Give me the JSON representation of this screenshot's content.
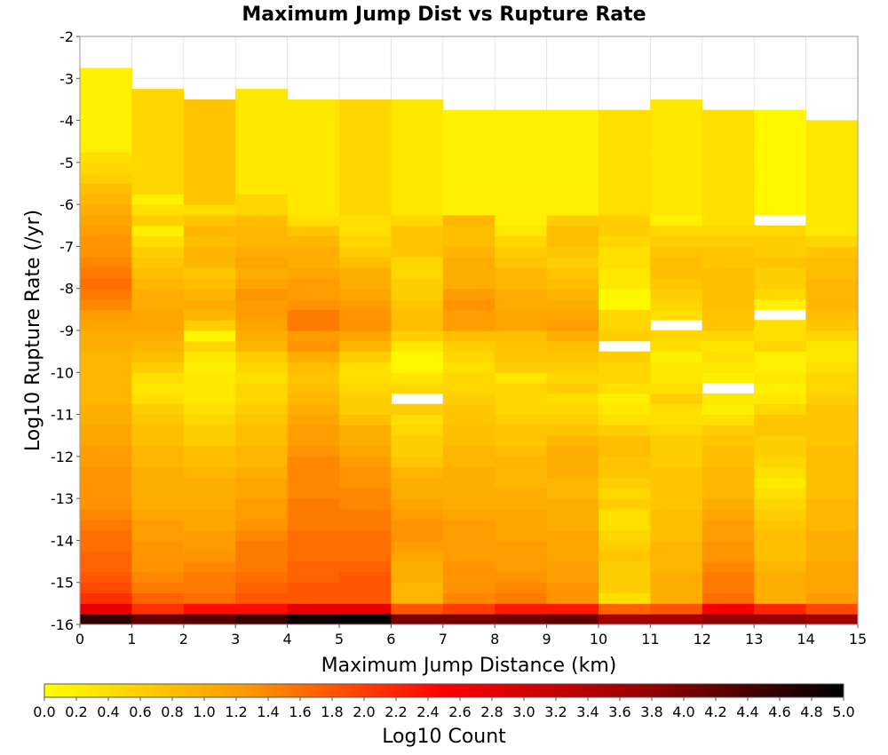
{
  "chart_data": {
    "type": "heatmap",
    "title": "Maximum Jump Dist vs Rupture Rate",
    "xlabel": "Maximum Jump Distance (km)",
    "ylabel": "Log10 Rupture Rate (/yr)",
    "xlim": [
      0,
      15
    ],
    "ylim": [
      -16,
      -2
    ],
    "x_ticks": [
      "0",
      "1",
      "2",
      "3",
      "4",
      "5",
      "6",
      "7",
      "8",
      "9",
      "10",
      "11",
      "12",
      "13",
      "14",
      "15"
    ],
    "y_ticks": [
      "-2",
      "-3",
      "-4",
      "-5",
      "-6",
      "-7",
      "-8",
      "-9",
      "-10",
      "-11",
      "-12",
      "-13",
      "-14",
      "-15",
      "-16"
    ],
    "x_bin_width_km": 1,
    "y_bin_height_log10": 0.25,
    "y_bin_start": -16,
    "colorbar": {
      "label": "Log10 Count",
      "range": [
        0,
        5
      ],
      "ticks": [
        "0.0",
        "0.2",
        "0.4",
        "0.6",
        "0.8",
        "1.0",
        "1.2",
        "1.4",
        "1.6",
        "1.8",
        "2.0",
        "2.2",
        "2.4",
        "2.6",
        "2.8",
        "3.0",
        "3.2",
        "3.4",
        "3.6",
        "3.8",
        "4.0",
        "4.2",
        "4.4",
        "4.6",
        "4.8",
        "5.0"
      ],
      "colors": [
        "#ffff00",
        "#ff9900",
        "#ff0000",
        "#990000",
        "#000000"
      ]
    },
    "grid": true,
    "column_top_log10_rate": [
      -2.75,
      -3.25,
      -3.5,
      -3.25,
      -3.5,
      -3.5,
      -3.5,
      -3.75,
      -3.75,
      -3.75,
      -3.75,
      -3.5,
      -3.75,
      -3.75,
      -4.0
    ],
    "bottom_row_values": [
      4.6,
      4.2,
      4.3,
      4.5,
      4.9,
      5.0,
      4.0,
      4.0,
      4.1,
      4.2,
      3.6,
      3.6,
      3.8,
      3.8,
      3.6
    ],
    "second_row_values": [
      2.8,
      2.1,
      2.4,
      2.4,
      2.8,
      2.8,
      1.8,
      2.0,
      2.3,
      2.3,
      1.7,
      1.8,
      2.6,
      2.2,
      1.9
    ],
    "surface_values_by_column": [
      [
        2.1,
        1.9,
        1.8,
        1.7,
        1.7,
        1.6,
        1.6,
        1.5,
        1.4,
        1.3,
        1.3,
        1.3,
        1.3,
        1.2,
        1.2,
        1.1,
        1.1,
        1.0,
        1.0,
        0.9,
        0.9,
        0.9,
        0.9,
        0.9,
        1.0,
        1.0,
        1.1,
        1.2,
        1.4,
        1.5,
        1.6,
        1.5,
        1.4,
        1.3,
        1.3,
        1.2,
        1.1,
        1.0,
        0.9,
        0.8,
        0.6,
        0.5,
        0.4,
        0.2
      ],
      [
        1.7,
        1.5,
        1.4,
        1.3,
        1.3,
        1.3,
        1.2,
        1.2,
        1.1,
        1.0,
        1.0,
        1.0,
        1.0,
        0.9,
        0.9,
        0.8,
        0.8,
        0.7,
        0.6,
        0.4,
        0.3,
        0.4,
        0.6,
        0.8,
        0.9,
        1.0,
        1.1,
        1.1,
        1.0,
        1.0,
        0.9,
        0.8,
        0.7,
        0.6,
        0.4,
        0.2,
        0.6,
        0.4,
        0.2,
        0.5
      ],
      [
        1.6,
        1.5,
        1.5,
        1.4,
        1.3,
        1.2,
        1.2,
        1.1,
        1.1,
        1.0,
        1.0,
        1.0,
        0.9,
        0.8,
        0.8,
        0.6,
        0.6,
        0.5,
        0.4,
        0.3,
        0.3,
        0.3,
        0.2,
        0.3,
        0.5,
        0.1,
        0.6,
        0.9,
        1.0,
        0.9,
        0.8,
        0.7,
        0.9,
        0.9,
        0.8,
        0.9,
        0.7,
        0.4,
        0.7
      ],
      [
        1.8,
        1.7,
        1.6,
        1.5,
        1.5,
        1.5,
        1.4,
        1.3,
        1.2,
        1.2,
        1.1,
        1.1,
        1.0,
        0.9,
        0.9,
        0.8,
        0.8,
        0.7,
        0.6,
        0.5,
        0.5,
        0.4,
        0.5,
        0.6,
        0.9,
        1.0,
        1.1,
        1.2,
        1.2,
        1.3,
        1.1,
        1.0,
        1.1,
        1.0,
        0.9,
        0.9,
        0.8,
        0.5,
        0.5,
        0.3
      ],
      [
        1.8,
        1.8,
        1.7,
        1.7,
        1.6,
        1.6,
        1.6,
        1.5,
        1.5,
        1.5,
        1.4,
        1.4,
        1.4,
        1.4,
        1.3,
        1.2,
        1.2,
        1.1,
        1.0,
        0.9,
        0.8,
        0.7,
        0.8,
        1.0,
        1.3,
        1.2,
        1.5,
        1.5,
        1.3,
        1.2,
        1.2,
        1.1,
        1.0,
        1.0,
        0.9,
        0.7,
        0.4,
        0.3
      ],
      [
        1.8,
        1.8,
        1.8,
        1.7,
        1.6,
        1.6,
        1.6,
        1.5,
        1.5,
        1.4,
        1.4,
        1.3,
        1.3,
        1.2,
        1.1,
        1.0,
        1.0,
        0.8,
        0.6,
        0.6,
        0.5,
        0.4,
        0.4,
        0.6,
        0.9,
        1.1,
        1.3,
        1.3,
        1.2,
        1.1,
        1.0,
        1.0,
        0.8,
        0.6,
        0.5,
        0.4,
        0.4,
        0.5
      ],
      [
        0.9,
        0.9,
        1.0,
        1.0,
        1.1,
        1.2,
        1.3,
        1.3,
        1.2,
        1.1,
        1.0,
        1.0,
        0.9,
        0.7,
        0.6,
        0.6,
        0.5,
        0.4,
        0.6,
        -1,
        0.5,
        0.3,
        0.1,
        0.1,
        0.3,
        0.6,
        0.8,
        0.8,
        0.7,
        0.6,
        0.6,
        0.5,
        0.5,
        0.7,
        0.7,
        0.7,
        0.5,
        0.3
      ],
      [
        1.4,
        1.3,
        1.3,
        1.3,
        1.2,
        1.2,
        1.2,
        1.2,
        1.1,
        1.0,
        1.0,
        1.0,
        1.0,
        0.9,
        0.9,
        0.8,
        0.8,
        0.7,
        0.7,
        0.6,
        0.5,
        0.5,
        0.4,
        0.5,
        0.6,
        0.8,
        1.2,
        1.2,
        1.3,
        1.2,
        1.0,
        1.0,
        1.0,
        0.9,
        0.8,
        0.8,
        0.9,
        0.2
      ],
      [
        1.5,
        1.4,
        1.3,
        1.2,
        1.2,
        1.2,
        1.1,
        1.1,
        1.1,
        1.0,
        1.0,
        0.9,
        0.9,
        0.9,
        0.8,
        0.7,
        0.7,
        0.6,
        0.5,
        0.5,
        0.5,
        0.3,
        0.6,
        0.7,
        0.7,
        0.8,
        1.1,
        1.1,
        1.0,
        1.0,
        0.9,
        0.9,
        0.7,
        0.6,
        0.5,
        0.3,
        0.2
      ],
      [
        1.3,
        1.3,
        1.2,
        1.2,
        1.1,
        1.1,
        1.1,
        1.0,
        1.0,
        1.0,
        0.9,
        0.9,
        1.0,
        1.0,
        1.0,
        0.9,
        0.7,
        0.6,
        0.5,
        0.4,
        0.6,
        0.5,
        0.6,
        0.7,
        0.8,
        1.0,
        1.2,
        1.1,
        1.0,
        0.9,
        0.8,
        0.7,
        0.6,
        0.7,
        0.8,
        0.8,
        0.6,
        0.2
      ],
      [
        0.4,
        0.6,
        0.6,
        0.6,
        0.7,
        0.6,
        0.5,
        0.4,
        0.4,
        0.6,
        0.5,
        0.6,
        0.7,
        0.7,
        0.8,
        0.8,
        0.6,
        0.4,
        0.3,
        0.2,
        0.4,
        0.5,
        0.5,
        0.6,
        -1,
        0.6,
        0.5,
        0.5,
        0.1,
        0.1,
        0.3,
        0.3,
        0.4,
        0.4,
        0.5,
        0.6,
        0.6,
        0.4
      ],
      [
        1.0,
        1.0,
        1.0,
        0.9,
        0.9,
        0.9,
        0.8,
        0.8,
        0.8,
        0.7,
        0.7,
        0.7,
        0.7,
        0.6,
        0.6,
        0.6,
        0.5,
        0.4,
        0.4,
        0.6,
        0.4,
        0.3,
        0.3,
        0.2,
        0.4,
        0.5,
        -1,
        0.4,
        0.5,
        0.6,
        0.7,
        0.8,
        0.8,
        0.7,
        0.6,
        0.5,
        0.2,
        0.3
      ],
      [
        1.6,
        1.5,
        1.5,
        1.4,
        1.3,
        1.3,
        1.2,
        1.2,
        1.1,
        1.0,
        0.9,
        0.9,
        0.9,
        0.8,
        0.8,
        0.7,
        0.6,
        0.4,
        0.2,
        0.3,
        -1,
        0.2,
        0.3,
        0.4,
        0.3,
        0.5,
        0.7,
        0.7,
        0.8,
        0.8,
        0.8,
        0.8,
        0.7,
        0.7,
        0.6,
        0.5,
        0.4
      ],
      [
        1.0,
        1.0,
        1.0,
        0.9,
        0.8,
        0.8,
        0.8,
        0.7,
        0.6,
        0.5,
        0.4,
        0.3,
        0.4,
        0.5,
        0.6,
        0.6,
        0.7,
        0.7,
        0.5,
        0.3,
        0.2,
        0.3,
        0.2,
        0.2,
        0.5,
        0.4,
        0.4,
        -1,
        0.2,
        0.5,
        0.6,
        0.6,
        0.7,
        0.6,
        0.6,
        0.5,
        -1,
        0.1
      ],
      [
        1.2,
        1.1,
        1.1,
        1.1,
        1.0,
        1.0,
        1.0,
        0.9,
        0.9,
        0.9,
        0.8,
        0.8,
        0.8,
        0.8,
        0.8,
        0.7,
        0.7,
        0.7,
        0.7,
        0.6,
        0.5,
        0.5,
        0.4,
        0.3,
        0.3,
        0.5,
        0.7,
        0.8,
        0.9,
        0.9,
        0.9,
        0.8,
        0.8,
        0.7,
        0.5,
        0.3
      ]
    ]
  }
}
